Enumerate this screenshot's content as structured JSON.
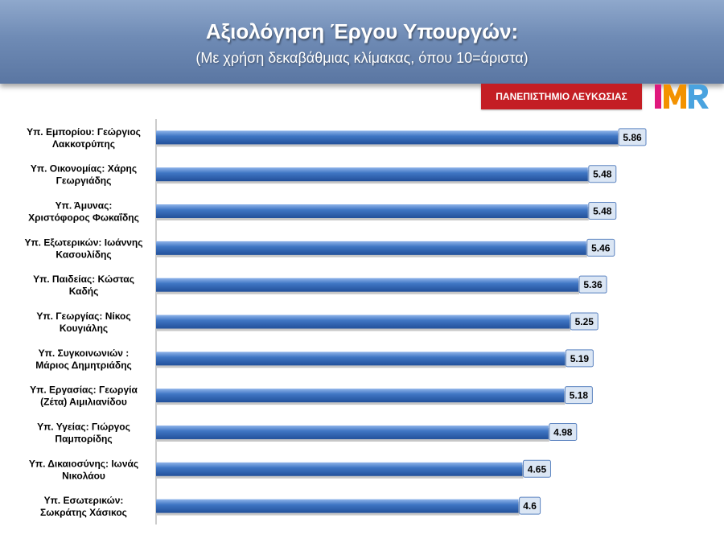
{
  "header": {
    "title": "Αξιολόγηση  Έργου Υπουργών:",
    "subtitle": "(Με χρήση δεκαβάθμιας κλίμακας, όπου 10=άριστα)"
  },
  "branding": {
    "university_label": "ΠΑΝΕΠΙΣΤΗΜΙΟ ΛΕΥΚΩΣΙΑΣ",
    "logo_text": "IMR"
  },
  "chart_data": {
    "type": "bar",
    "orientation": "horizontal",
    "categories": [
      [
        "Υπ. Εμπορίου: Γεώργιος",
        "Λακκοτρύπης"
      ],
      [
        "Υπ. Οικονομίας: Χάρης",
        "Γεωργιάδης"
      ],
      [
        "Υπ. Άμυνας:",
        "Χριστόφορος Φωκαΐδης"
      ],
      [
        "Υπ. Εξωτερικών: Ιωάννης",
        "Κασουλίδης"
      ],
      [
        "Υπ. Παιδείας: Κώστας",
        "Καδής"
      ],
      [
        "Υπ. Γεωργίας: Νίκος",
        "Κουγιάλης"
      ],
      [
        "Υπ. Συγκοινωνιών :",
        "Μάριος Δημητριάδης"
      ],
      [
        "Υπ. Εργασίας: Γεωργία",
        "(Ζέτα) Αιμιλιανίδου"
      ],
      [
        "Υπ. Υγείας: Γιώργος",
        "Παμπορίδης"
      ],
      [
        "Υπ. Δικαιοσύνης: Ιωνάς",
        "Νικολάου"
      ],
      [
        "Υπ. Εσωτερικών:",
        "Σωκράτης Χάσικος"
      ]
    ],
    "values": [
      5.86,
      5.48,
      5.48,
      5.46,
      5.36,
      5.25,
      5.19,
      5.18,
      4.98,
      4.65,
      4.6
    ],
    "value_labels": [
      "5.86",
      "5.48",
      "5.48",
      "5.46",
      "5.36",
      "5.25",
      "5.19",
      "5.18",
      "4.98",
      "4.65",
      "4.6"
    ],
    "xlim": [
      0,
      6.5
    ],
    "grid": false,
    "legend": "none",
    "bar_color": "#3f76c4",
    "label_box_color": "#dbe6f4"
  }
}
